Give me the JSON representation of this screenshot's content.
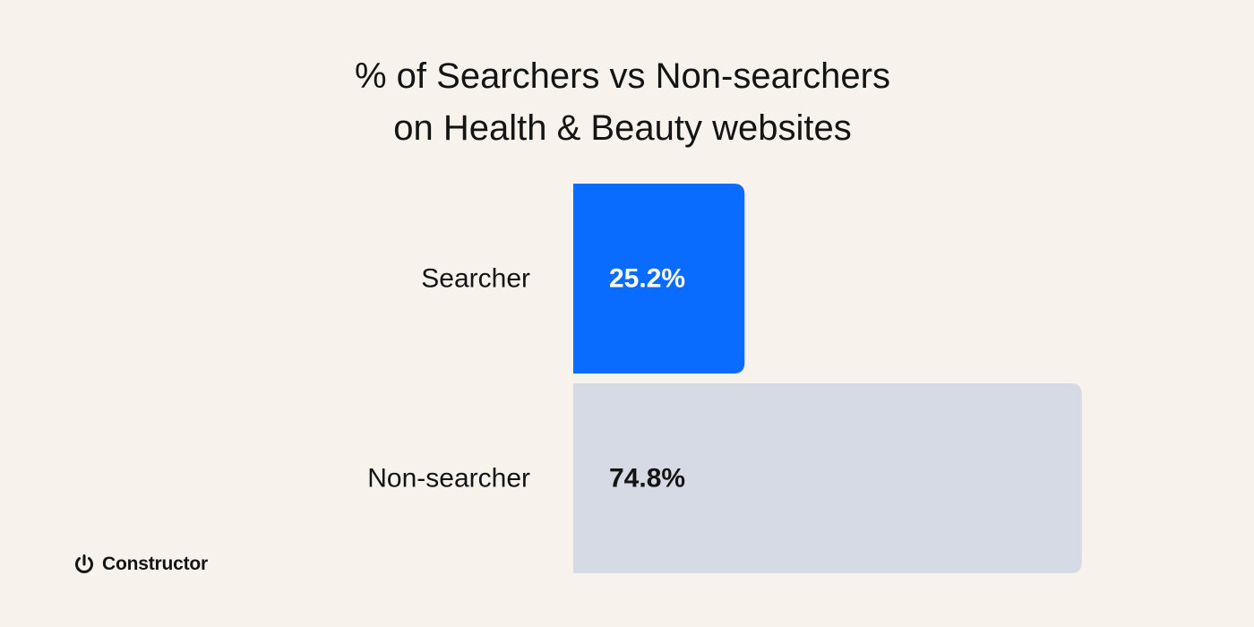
{
  "title_line1": "% of Searchers vs Non-searchers",
  "title_line2": "on Health & Beauty websites",
  "brand": "Constructor",
  "chart_data": {
    "type": "bar",
    "orientation": "horizontal",
    "title": "% of Searchers vs Non-searchers on Health & Beauty websites",
    "categories": [
      "Searcher",
      "Non-searcher"
    ],
    "values": [
      25.2,
      74.8
    ],
    "value_labels": [
      "25.2%",
      "74.8%"
    ],
    "unit": "%",
    "colors": [
      "#0a6cff",
      "#d6dae5"
    ],
    "label_colors": [
      "#ffffff",
      "#141414"
    ],
    "xlim": [
      0,
      100
    ],
    "grid": false,
    "legend": "none"
  }
}
